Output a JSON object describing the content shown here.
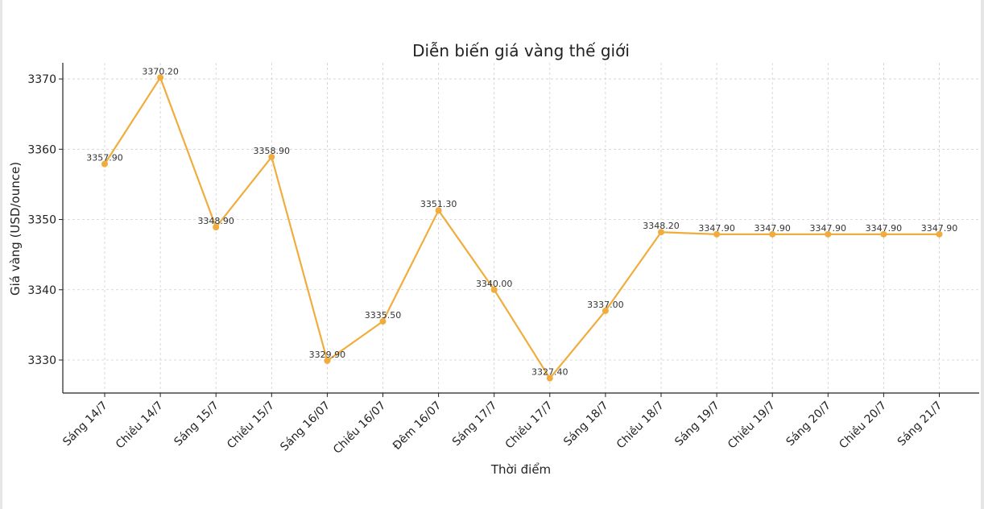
{
  "chart_data": {
    "type": "line",
    "title": "Diễn biến giá vàng thế giới",
    "xlabel": "Thời điểm",
    "ylabel": "Giá vàng (USD/ounce)",
    "categories": [
      "Sáng 14/7",
      "Chiều 14/7",
      "Sáng 15/7",
      "Chiều 15/7",
      "Sáng 16/07",
      "Chiều 16/07",
      "Đêm 16/07",
      "Sáng 17/7",
      "Chiều 17/7",
      "Sáng 18/7",
      "Chiều 18/7",
      "Sáng 19/7",
      "Chiều 19/7",
      "Sáng 20/7",
      "Chiều 20/7",
      "Sáng 21/7"
    ],
    "values": [
      3357.9,
      3370.2,
      3348.9,
      3358.9,
      3329.9,
      3335.5,
      3351.3,
      3340.0,
      3327.4,
      3337.0,
      3348.2,
      3347.9,
      3347.9,
      3347.9,
      3347.9,
      3347.9
    ],
    "data_labels": [
      "3357.90",
      "3370.20",
      "3348.90",
      "3358.90",
      "3329.90",
      "3335.50",
      "3351.30",
      "3340.00",
      "3327.40",
      "3337.00",
      "3348.20",
      "3347.90",
      "3347.90",
      "3347.90",
      "3347.90",
      "3347.90"
    ],
    "yticks": [
      3330,
      3340,
      3350,
      3360,
      3370
    ],
    "ylim": [
      3325.3,
      3372.3
    ],
    "grid": true,
    "line_color": "#F0AD3D"
  }
}
